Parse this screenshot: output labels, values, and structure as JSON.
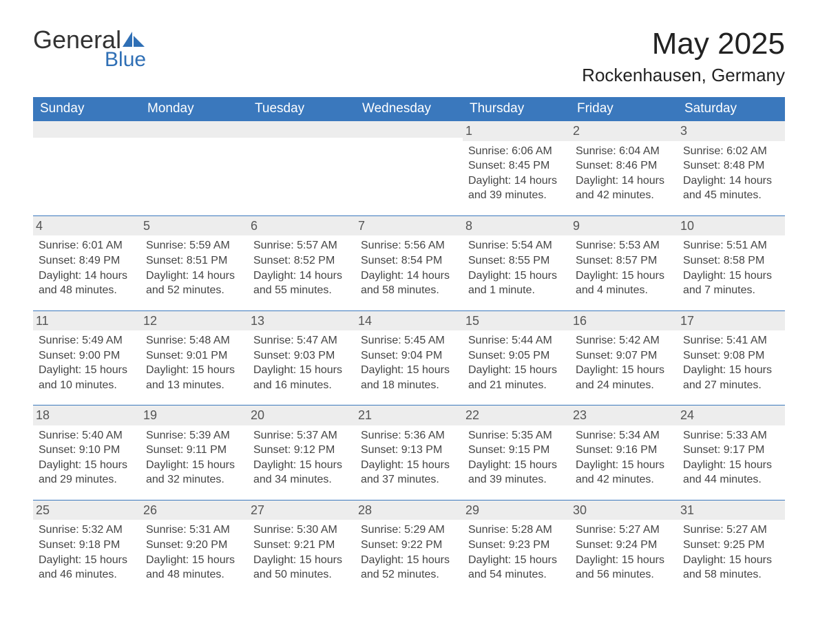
{
  "brand": {
    "word1": "General",
    "word2": "Blue",
    "accent_color": "#2f6fb5"
  },
  "title": "May 2025",
  "location": "Rockenhausen, Germany",
  "theme": {
    "header_bg": "#3a78bd",
    "header_fg": "#ffffff",
    "daynum_bg": "#ededed",
    "daynum_fg": "#555555",
    "row_border": "#3a78bd",
    "page_bg": "#ffffff",
    "text_color": "#444444",
    "header_fontsize": 19,
    "cell_fontsize": 16,
    "title_fontsize": 44,
    "location_fontsize": 26
  },
  "weekdays": [
    "Sunday",
    "Monday",
    "Tuesday",
    "Wednesday",
    "Thursday",
    "Friday",
    "Saturday"
  ],
  "weeks": [
    [
      {
        "blank": true
      },
      {
        "blank": true
      },
      {
        "blank": true
      },
      {
        "blank": true
      },
      {
        "day": "1",
        "sunrise": "6:06 AM",
        "sunset": "8:45 PM",
        "daylight": "14 hours and 39 minutes."
      },
      {
        "day": "2",
        "sunrise": "6:04 AM",
        "sunset": "8:46 PM",
        "daylight": "14 hours and 42 minutes."
      },
      {
        "day": "3",
        "sunrise": "6:02 AM",
        "sunset": "8:48 PM",
        "daylight": "14 hours and 45 minutes."
      }
    ],
    [
      {
        "day": "4",
        "sunrise": "6:01 AM",
        "sunset": "8:49 PM",
        "daylight": "14 hours and 48 minutes."
      },
      {
        "day": "5",
        "sunrise": "5:59 AM",
        "sunset": "8:51 PM",
        "daylight": "14 hours and 52 minutes."
      },
      {
        "day": "6",
        "sunrise": "5:57 AM",
        "sunset": "8:52 PM",
        "daylight": "14 hours and 55 minutes."
      },
      {
        "day": "7",
        "sunrise": "5:56 AM",
        "sunset": "8:54 PM",
        "daylight": "14 hours and 58 minutes."
      },
      {
        "day": "8",
        "sunrise": "5:54 AM",
        "sunset": "8:55 PM",
        "daylight": "15 hours and 1 minute."
      },
      {
        "day": "9",
        "sunrise": "5:53 AM",
        "sunset": "8:57 PM",
        "daylight": "15 hours and 4 minutes."
      },
      {
        "day": "10",
        "sunrise": "5:51 AM",
        "sunset": "8:58 PM",
        "daylight": "15 hours and 7 minutes."
      }
    ],
    [
      {
        "day": "11",
        "sunrise": "5:49 AM",
        "sunset": "9:00 PM",
        "daylight": "15 hours and 10 minutes."
      },
      {
        "day": "12",
        "sunrise": "5:48 AM",
        "sunset": "9:01 PM",
        "daylight": "15 hours and 13 minutes."
      },
      {
        "day": "13",
        "sunrise": "5:47 AM",
        "sunset": "9:03 PM",
        "daylight": "15 hours and 16 minutes."
      },
      {
        "day": "14",
        "sunrise": "5:45 AM",
        "sunset": "9:04 PM",
        "daylight": "15 hours and 18 minutes."
      },
      {
        "day": "15",
        "sunrise": "5:44 AM",
        "sunset": "9:05 PM",
        "daylight": "15 hours and 21 minutes."
      },
      {
        "day": "16",
        "sunrise": "5:42 AM",
        "sunset": "9:07 PM",
        "daylight": "15 hours and 24 minutes."
      },
      {
        "day": "17",
        "sunrise": "5:41 AM",
        "sunset": "9:08 PM",
        "daylight": "15 hours and 27 minutes."
      }
    ],
    [
      {
        "day": "18",
        "sunrise": "5:40 AM",
        "sunset": "9:10 PM",
        "daylight": "15 hours and 29 minutes."
      },
      {
        "day": "19",
        "sunrise": "5:39 AM",
        "sunset": "9:11 PM",
        "daylight": "15 hours and 32 minutes."
      },
      {
        "day": "20",
        "sunrise": "5:37 AM",
        "sunset": "9:12 PM",
        "daylight": "15 hours and 34 minutes."
      },
      {
        "day": "21",
        "sunrise": "5:36 AM",
        "sunset": "9:13 PM",
        "daylight": "15 hours and 37 minutes."
      },
      {
        "day": "22",
        "sunrise": "5:35 AM",
        "sunset": "9:15 PM",
        "daylight": "15 hours and 39 minutes."
      },
      {
        "day": "23",
        "sunrise": "5:34 AM",
        "sunset": "9:16 PM",
        "daylight": "15 hours and 42 minutes."
      },
      {
        "day": "24",
        "sunrise": "5:33 AM",
        "sunset": "9:17 PM",
        "daylight": "15 hours and 44 minutes."
      }
    ],
    [
      {
        "day": "25",
        "sunrise": "5:32 AM",
        "sunset": "9:18 PM",
        "daylight": "15 hours and 46 minutes."
      },
      {
        "day": "26",
        "sunrise": "5:31 AM",
        "sunset": "9:20 PM",
        "daylight": "15 hours and 48 minutes."
      },
      {
        "day": "27",
        "sunrise": "5:30 AM",
        "sunset": "9:21 PM",
        "daylight": "15 hours and 50 minutes."
      },
      {
        "day": "28",
        "sunrise": "5:29 AM",
        "sunset": "9:22 PM",
        "daylight": "15 hours and 52 minutes."
      },
      {
        "day": "29",
        "sunrise": "5:28 AM",
        "sunset": "9:23 PM",
        "daylight": "15 hours and 54 minutes."
      },
      {
        "day": "30",
        "sunrise": "5:27 AM",
        "sunset": "9:24 PM",
        "daylight": "15 hours and 56 minutes."
      },
      {
        "day": "31",
        "sunrise": "5:27 AM",
        "sunset": "9:25 PM",
        "daylight": "15 hours and 58 minutes."
      }
    ]
  ],
  "labels": {
    "sunrise": "Sunrise: ",
    "sunset": "Sunset: ",
    "daylight": "Daylight: "
  }
}
